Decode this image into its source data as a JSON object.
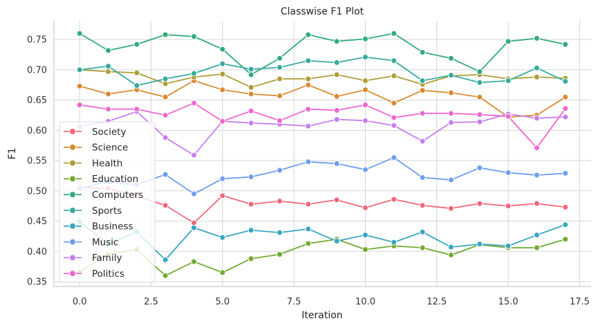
{
  "chart_data": {
    "type": "line",
    "title": "Classwise F1 Plot",
    "xlabel": "Iteration",
    "ylabel": "F1",
    "xlim": [
      -0.9,
      17.9
    ],
    "ylim": [
      0.342,
      0.781
    ],
    "x_ticks": [
      0.0,
      2.5,
      5.0,
      7.5,
      10.0,
      12.5,
      15.0,
      17.5
    ],
    "x_tick_labels": [
      "0.0",
      "2.5",
      "5.0",
      "7.5",
      "10.0",
      "12.5",
      "15.0",
      "17.5"
    ],
    "y_ticks": [
      0.35,
      0.4,
      0.45,
      0.5,
      0.55,
      0.6,
      0.65,
      0.7,
      0.75
    ],
    "y_tick_labels": [
      "0.35",
      "0.40",
      "0.45",
      "0.50",
      "0.55",
      "0.60",
      "0.65",
      "0.70",
      "0.75"
    ],
    "grid": true,
    "legend_position": "left",
    "x": [
      0,
      1,
      2,
      3,
      4,
      5,
      6,
      7,
      8,
      9,
      10,
      11,
      12,
      13,
      14,
      15,
      16,
      17
    ],
    "series": [
      {
        "name": "Society",
        "color": "#f0677a",
        "values": [
          0.506,
          0.504,
          0.491,
          0.476,
          0.447,
          0.492,
          0.478,
          0.483,
          0.478,
          0.485,
          0.472,
          0.486,
          0.476,
          0.471,
          0.479,
          0.475,
          0.479,
          0.473
        ]
      },
      {
        "name": "Science",
        "color": "#d98a30",
        "values": [
          0.673,
          0.66,
          0.667,
          0.655,
          0.682,
          0.667,
          0.66,
          0.657,
          0.675,
          0.656,
          0.667,
          0.645,
          0.666,
          0.662,
          0.655,
          0.622,
          0.625,
          0.655
        ]
      },
      {
        "name": "Health",
        "color": "#ad9d36",
        "values": [
          0.7,
          0.697,
          0.695,
          0.677,
          0.688,
          0.693,
          0.671,
          0.685,
          0.685,
          0.692,
          0.682,
          0.69,
          0.676,
          0.69,
          0.692,
          0.685,
          0.688,
          0.686
        ]
      },
      {
        "name": "Education",
        "color": "#72ab31",
        "values": [
          0.366,
          0.395,
          0.403,
          0.36,
          0.383,
          0.365,
          0.388,
          0.395,
          0.413,
          0.42,
          0.403,
          0.409,
          0.406,
          0.394,
          0.411,
          0.406,
          0.406,
          0.42
        ]
      },
      {
        "name": "Computers",
        "color": "#32ab7a",
        "values": [
          0.76,
          0.732,
          0.742,
          0.758,
          0.755,
          0.734,
          0.692,
          0.719,
          0.758,
          0.747,
          0.751,
          0.76,
          0.729,
          0.719,
          0.697,
          0.747,
          0.752,
          0.742
        ]
      },
      {
        "name": "Sports",
        "color": "#36ab9f",
        "values": [
          0.7,
          0.706,
          0.674,
          0.685,
          0.694,
          0.71,
          0.701,
          0.704,
          0.715,
          0.712,
          0.721,
          0.715,
          0.682,
          0.691,
          0.679,
          0.682,
          0.703,
          0.681
        ]
      },
      {
        "name": "Business",
        "color": "#39a6c1",
        "values": [
          0.449,
          0.412,
          0.432,
          0.386,
          0.439,
          0.423,
          0.435,
          0.431,
          0.437,
          0.417,
          0.427,
          0.415,
          0.432,
          0.407,
          0.412,
          0.409,
          0.427,
          0.444
        ]
      },
      {
        "name": "Music",
        "color": "#6e9ef0",
        "values": [
          0.504,
          0.515,
          0.51,
          0.527,
          0.495,
          0.52,
          0.523,
          0.534,
          0.548,
          0.545,
          0.535,
          0.555,
          0.522,
          0.518,
          0.538,
          0.53,
          0.526,
          0.529
        ]
      },
      {
        "name": "Family",
        "color": "#c77ef0",
        "values": [
          0.606,
          0.615,
          0.631,
          0.588,
          0.559,
          0.615,
          0.612,
          0.61,
          0.607,
          0.618,
          0.616,
          0.608,
          0.582,
          0.613,
          0.614,
          0.627,
          0.62,
          0.622
        ]
      },
      {
        "name": "Politics",
        "color": "#f066cf",
        "values": [
          0.642,
          0.635,
          0.635,
          0.625,
          0.645,
          0.615,
          0.632,
          0.616,
          0.635,
          0.633,
          0.642,
          0.621,
          0.628,
          0.628,
          0.626,
          0.623,
          0.571,
          0.636
        ]
      }
    ]
  }
}
